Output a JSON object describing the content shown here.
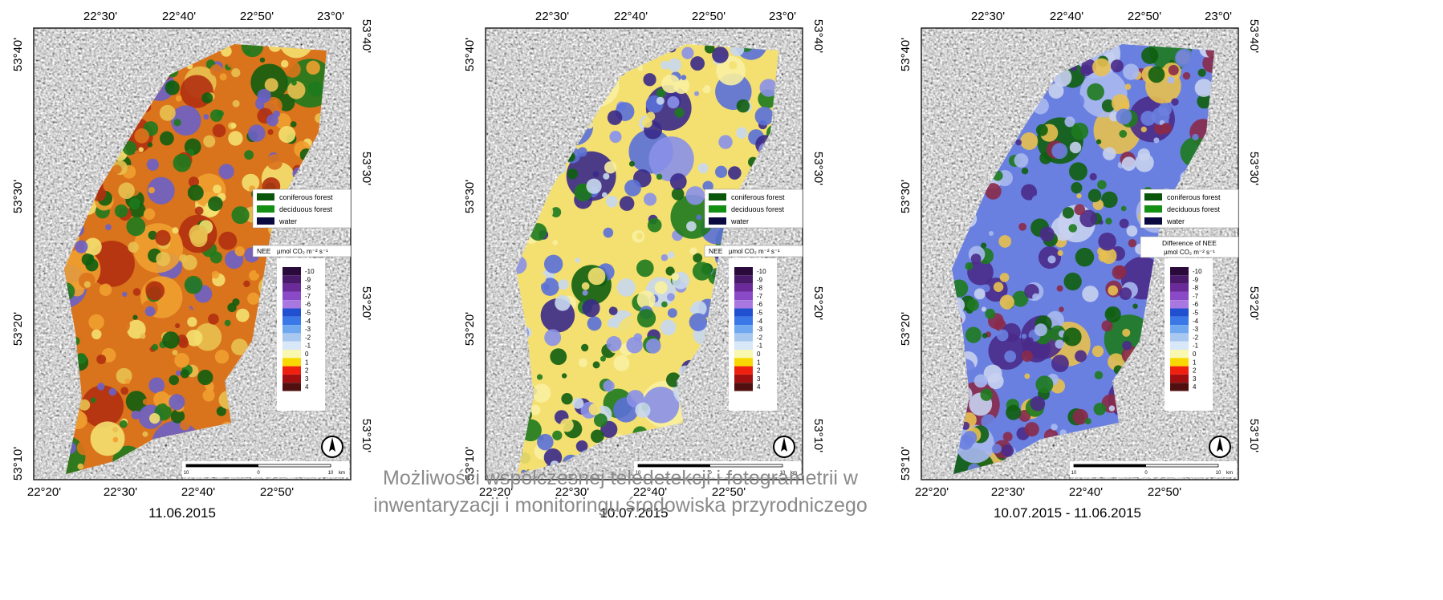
{
  "panels": [
    {
      "caption": "11.06.2015",
      "top_labels": [
        "22°30'",
        "22°40'",
        "22°50'",
        "23°0'"
      ],
      "bottom_labels": [
        "22°20'",
        "22°30'",
        "22°40'",
        "22°50'"
      ],
      "left_labels": [
        "53°40'",
        "53°30'",
        "53°20'",
        "53°10'"
      ],
      "right_labels": [
        "53°40'",
        "53°30'",
        "53°20'",
        "53°10'"
      ],
      "legend": [
        "coniferous forest",
        "deciduous forest",
        "water"
      ],
      "scale_title": "NEE",
      "scale_unit": "µmol CO₂ m⁻² s⁻¹",
      "scale_ticks": [
        -10,
        -9,
        -8,
        -7,
        -6,
        -5,
        -4,
        -3,
        -2,
        -1,
        0,
        1,
        2,
        3,
        4
      ],
      "scale_bar": [
        "10",
        "0",
        "10",
        "km"
      ]
    },
    {
      "caption": "10.07.2015",
      "top_labels": [
        "22°30'",
        "22°40'",
        "22°50'",
        "23°0'"
      ],
      "bottom_labels": [
        "22°20'",
        "22°30'",
        "22°40'",
        "22°50'"
      ],
      "left_labels": [
        "53°40'",
        "53°30'",
        "53°20'",
        "53°10'"
      ],
      "right_labels": [
        "53°40'",
        "53°30'",
        "53°20'",
        "53°10'"
      ],
      "legend": [
        "coniferous forest",
        "deciduous forest",
        "water"
      ],
      "scale_title": "NEE",
      "scale_unit": "µmol CO₂ m⁻² s⁻¹",
      "scale_ticks": [
        -10,
        -9,
        -8,
        -7,
        -6,
        -5,
        -4,
        -3,
        -2,
        -1,
        0,
        1,
        2,
        3,
        4
      ],
      "scale_bar": [
        "10",
        "0",
        "10",
        "km"
      ]
    },
    {
      "caption": "10.07.2015 - 11.06.2015",
      "top_labels": [
        "22°30'",
        "22°40'",
        "22°50'",
        "23°0'"
      ],
      "bottom_labels": [
        "22°20'",
        "22°30'",
        "22°40'",
        "22°50'"
      ],
      "left_labels": [
        "53°40'",
        "53°30'",
        "53°20'",
        "53°10'"
      ],
      "right_labels": [
        "53°40'",
        "53°30'",
        "53°20'",
        "53°10'"
      ],
      "legend": [
        "coniferous forest",
        "deciduous forest",
        "water"
      ],
      "scale_title": "Difference of NEE",
      "scale_unit": "µmol CO₂ m⁻² s⁻¹",
      "scale_ticks": [
        -10,
        -9,
        -8,
        -7,
        -6,
        -5,
        -4,
        -3,
        -2,
        -1,
        0,
        1,
        2,
        3,
        4
      ],
      "scale_bar": [
        "10",
        "0",
        "10",
        "km"
      ]
    }
  ],
  "footer": {
    "line1": "Możliwości współczesnej teledetekcji i fotogrametrii w",
    "line2": "inwentaryzacji i monitoringu środowiska przyrodniczego"
  }
}
